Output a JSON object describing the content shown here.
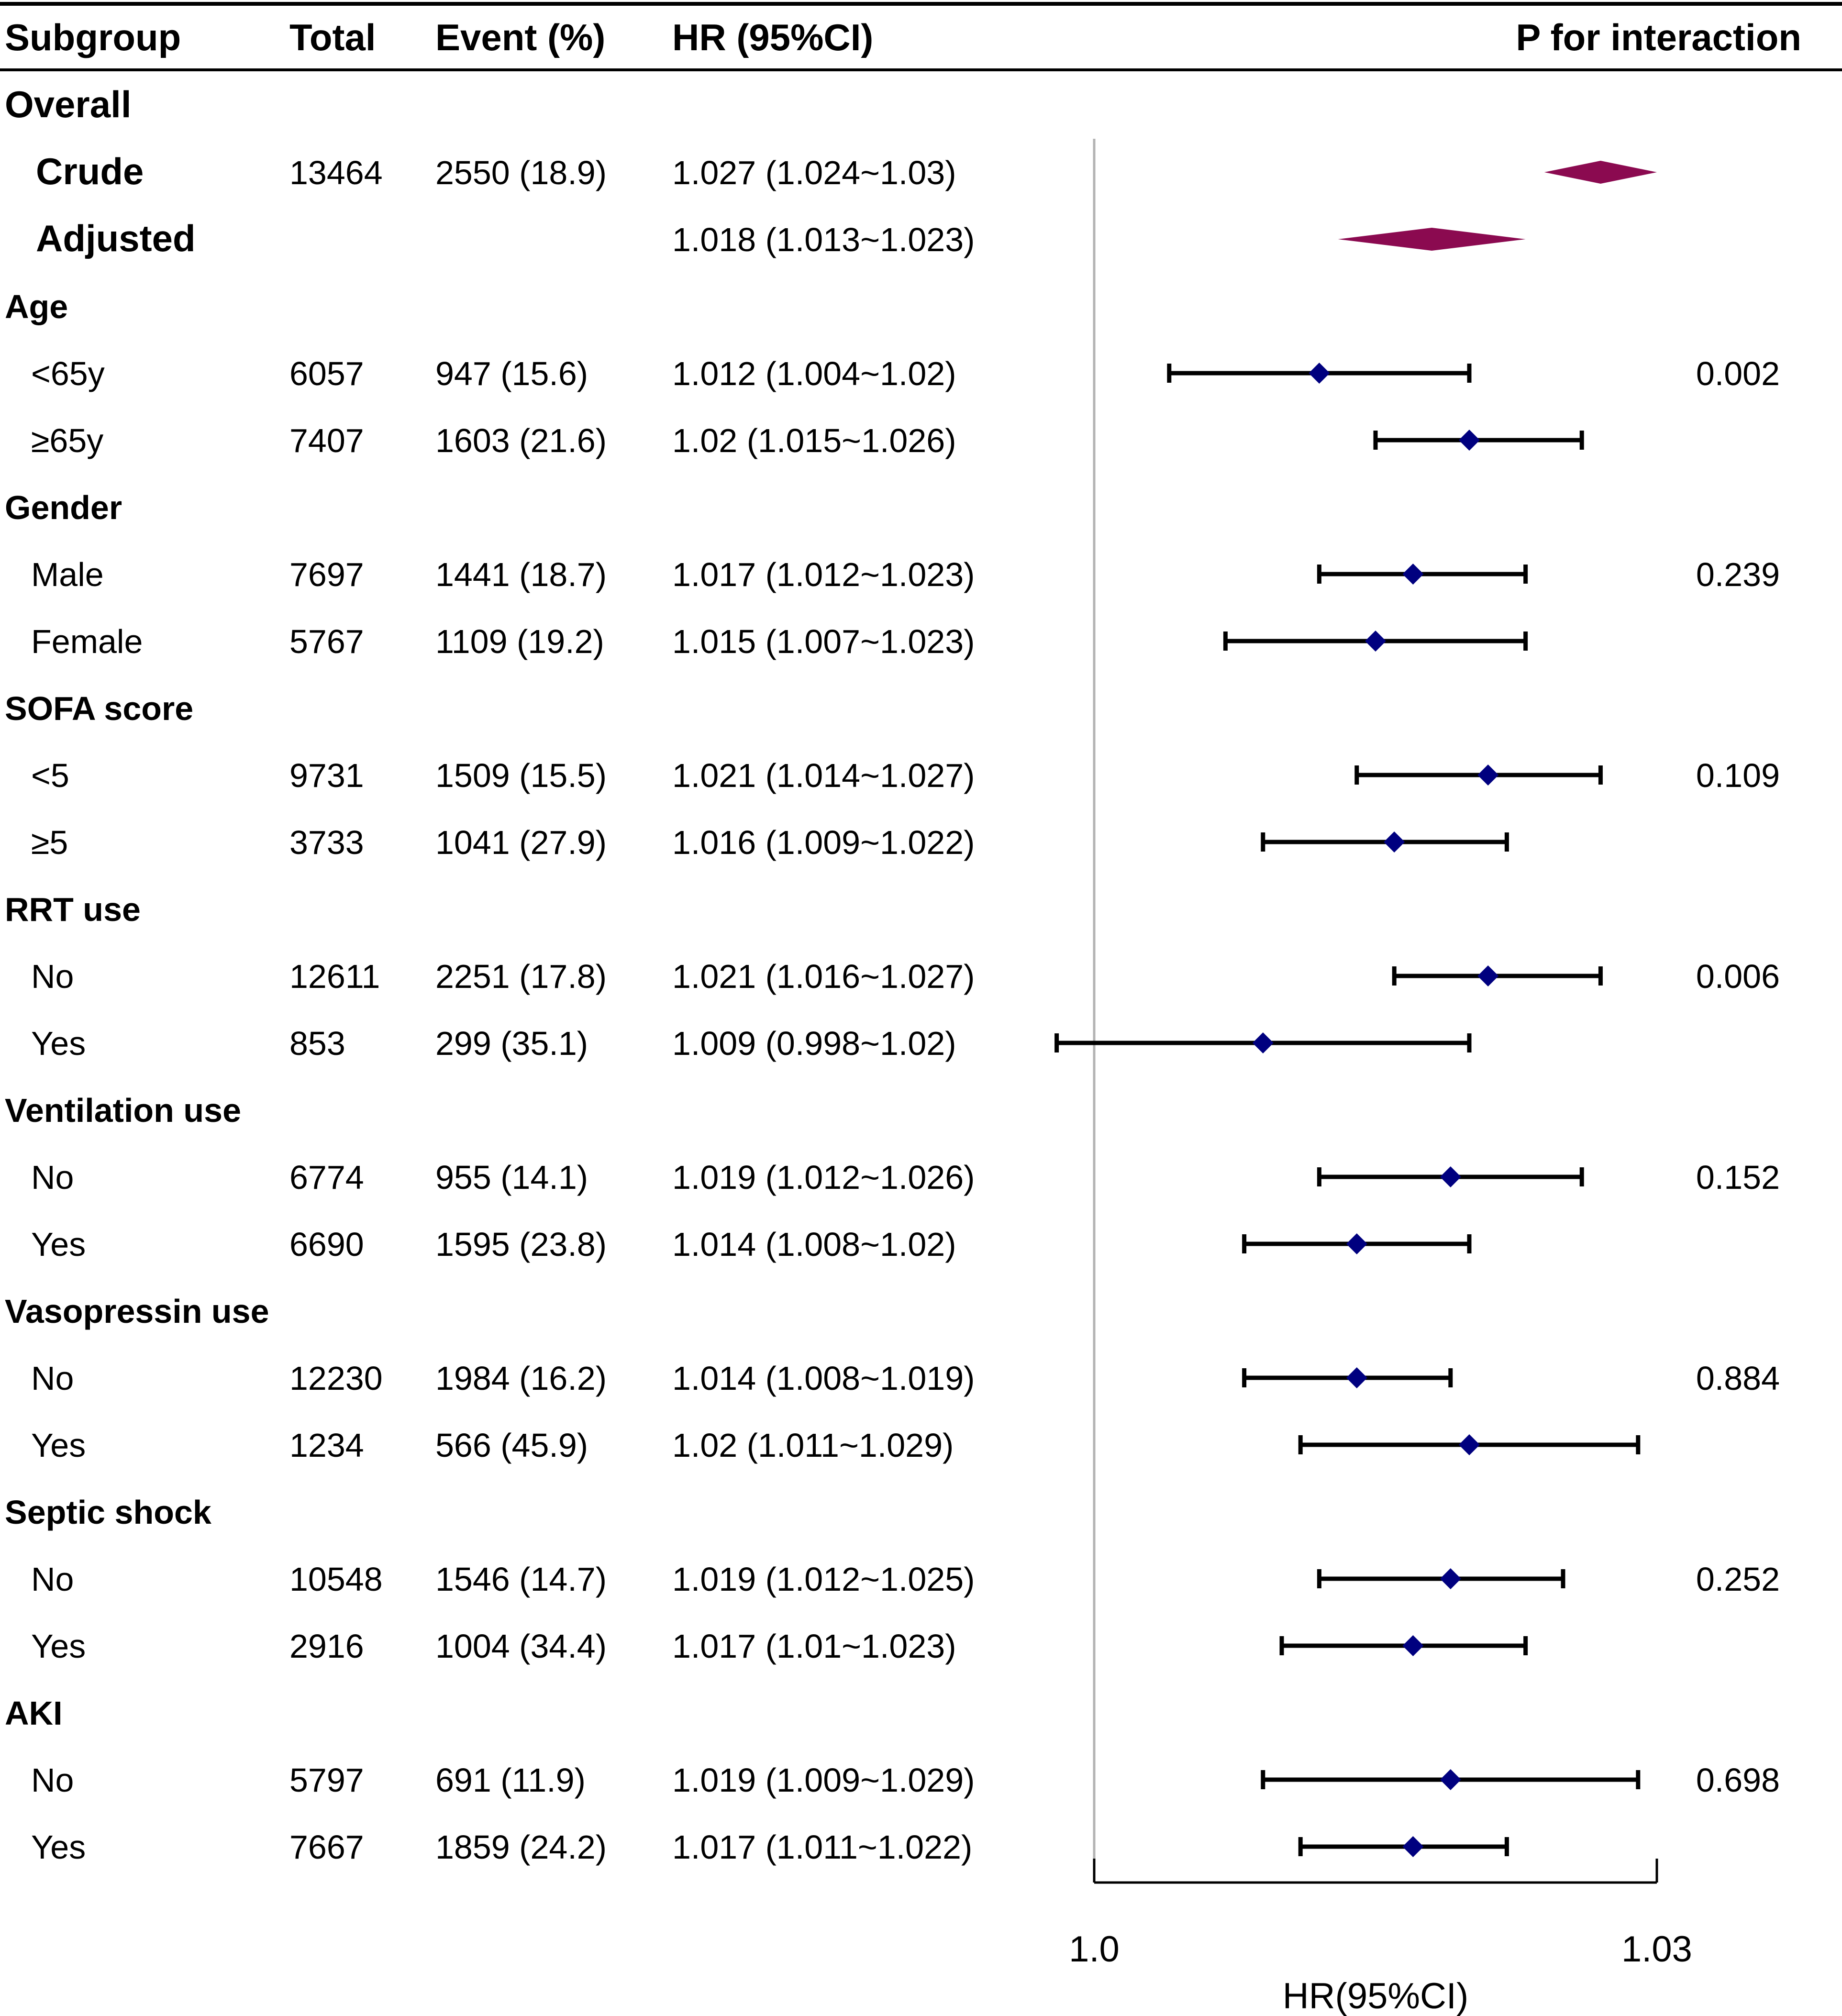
{
  "headers": {
    "subgroup": "Subgroup",
    "total": "Total",
    "event": "Event (%)",
    "hr": "HR (95%CI)",
    "p": "P for interaction"
  },
  "overall": {
    "label": "Overall",
    "crude": {
      "label": "Crude",
      "total": "13464",
      "event": "2550 (18.9)",
      "hr_text": "1.027 (1.024~1.03)",
      "hr": 1.027,
      "lo": 1.024,
      "hi": 1.03
    },
    "adjusted": {
      "label": "Adjusted",
      "total": "",
      "event": "",
      "hr_text": "1.018 (1.013~1.023)",
      "hr": 1.018,
      "lo": 1.013,
      "hi": 1.023
    }
  },
  "groups": [
    {
      "name": "Age",
      "p": "0.002",
      "rows": [
        {
          "label": "<65y",
          "total": "6057",
          "event": "947 (15.6)",
          "hr_text": "1.012 (1.004~1.02)",
          "hr": 1.012,
          "lo": 1.004,
          "hi": 1.02
        },
        {
          "label": "≥65y",
          "total": "7407",
          "event": "1603 (21.6)",
          "hr_text": "1.02 (1.015~1.026)",
          "hr": 1.02,
          "lo": 1.015,
          "hi": 1.026
        }
      ]
    },
    {
      "name": "Gender",
      "p": "0.239",
      "rows": [
        {
          "label": "Male",
          "total": "7697",
          "event": "1441 (18.7)",
          "hr_text": "1.017 (1.012~1.023)",
          "hr": 1.017,
          "lo": 1.012,
          "hi": 1.023
        },
        {
          "label": "Female",
          "total": "5767",
          "event": "1109 (19.2)",
          "hr_text": "1.015 (1.007~1.023)",
          "hr": 1.015,
          "lo": 1.007,
          "hi": 1.023
        }
      ]
    },
    {
      "name": "SOFA score",
      "p": "0.109",
      "rows": [
        {
          "label": "<5",
          "total": "9731",
          "event": "1509 (15.5)",
          "hr_text": "1.021 (1.014~1.027)",
          "hr": 1.021,
          "lo": 1.014,
          "hi": 1.027
        },
        {
          "label": "≥5",
          "total": "3733",
          "event": "1041 (27.9)",
          "hr_text": "1.016 (1.009~1.022)",
          "hr": 1.016,
          "lo": 1.009,
          "hi": 1.022
        }
      ]
    },
    {
      "name": "RRT use",
      "p": "0.006",
      "rows": [
        {
          "label": "No",
          "total": "12611",
          "event": "2251 (17.8)",
          "hr_text": "1.021 (1.016~1.027)",
          "hr": 1.021,
          "lo": 1.016,
          "hi": 1.027
        },
        {
          "label": "Yes",
          "total": "853",
          "event": "299 (35.1)",
          "hr_text": "1.009 (0.998~1.02)",
          "hr": 1.009,
          "lo": 0.998,
          "hi": 1.02
        }
      ]
    },
    {
      "name": "Ventilation use",
      "p": "0.152",
      "rows": [
        {
          "label": "No",
          "total": "6774",
          "event": "955 (14.1)",
          "hr_text": "1.019 (1.012~1.026)",
          "hr": 1.019,
          "lo": 1.012,
          "hi": 1.026
        },
        {
          "label": "Yes",
          "total": "6690",
          "event": "1595 (23.8)",
          "hr_text": "1.014 (1.008~1.02)",
          "hr": 1.014,
          "lo": 1.008,
          "hi": 1.02
        }
      ]
    },
    {
      "name": "Vasopressin use",
      "p": "0.884",
      "rows": [
        {
          "label": "No",
          "total": "12230",
          "event": "1984 (16.2)",
          "hr_text": "1.014 (1.008~1.019)",
          "hr": 1.014,
          "lo": 1.008,
          "hi": 1.019
        },
        {
          "label": "Yes",
          "total": "1234",
          "event": "566 (45.9)",
          "hr_text": "1.02 (1.011~1.029)",
          "hr": 1.02,
          "lo": 1.011,
          "hi": 1.029
        }
      ]
    },
    {
      "name": "Septic shock",
      "p": "0.252",
      "rows": [
        {
          "label": "No",
          "total": "10548",
          "event": "1546 (14.7)",
          "hr_text": "1.019 (1.012~1.025)",
          "hr": 1.019,
          "lo": 1.012,
          "hi": 1.025
        },
        {
          "label": "Yes",
          "total": "2916",
          "event": "1004 (34.4)",
          "hr_text": "1.017 (1.01~1.023)",
          "hr": 1.017,
          "lo": 1.01,
          "hi": 1.023
        }
      ]
    },
    {
      "name": "AKI",
      "p": "0.698",
      "rows": [
        {
          "label": "No",
          "total": "5797",
          "event": "691 (11.9)",
          "hr_text": "1.019 (1.009~1.029)",
          "hr": 1.019,
          "lo": 1.009,
          "hi": 1.029
        },
        {
          "label": "Yes",
          "total": "7667",
          "event": "1859 (24.2)",
          "hr_text": "1.017 (1.011~1.022)",
          "hr": 1.017,
          "lo": 1.011,
          "hi": 1.022
        }
      ]
    }
  ],
  "chart_data": {
    "type": "forest",
    "xlabel": "HR(95%CI)",
    "xlim": [
      1.0,
      1.03
    ],
    "xticks": [
      1.0,
      1.03
    ],
    "xtick_labels": [
      "1.0",
      "1.03"
    ],
    "reference_line": 1.0,
    "colors": {
      "overall": "#8b0a50",
      "subgroup": "#00007f",
      "ci": "#000000",
      "reference": "#b3b3b3"
    }
  }
}
